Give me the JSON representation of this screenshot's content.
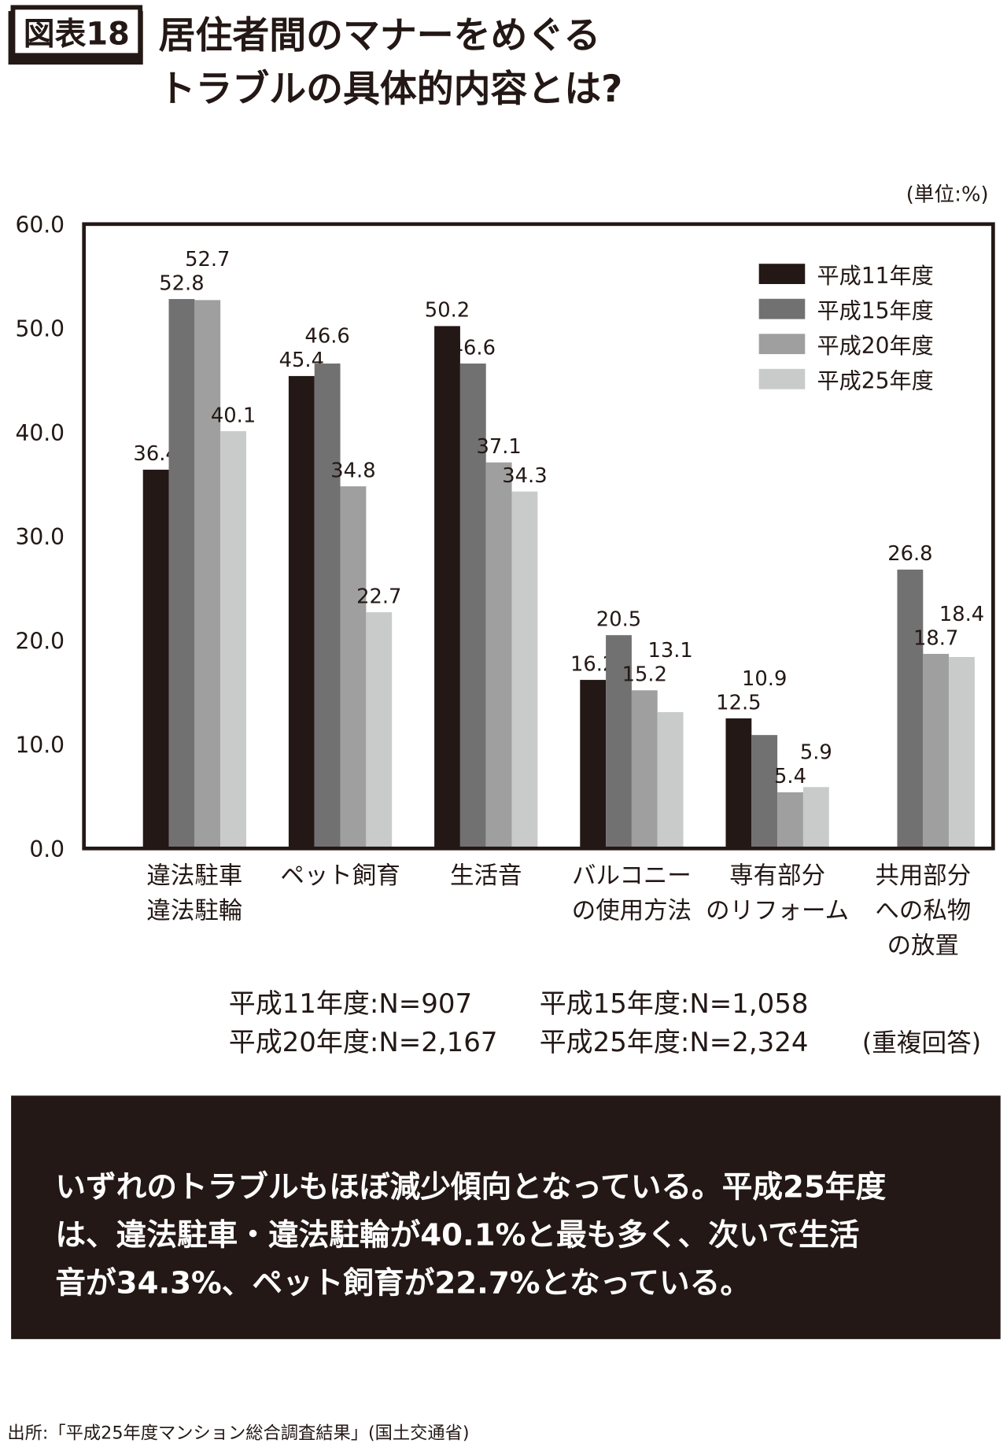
{
  "header": {
    "badge": "図表18",
    "title_line1": "居住者間のマナーをめぐる",
    "title_line2": "トラブルの具体的内容とは?"
  },
  "colors": {
    "series": [
      "#231815",
      "#727171",
      "#9f9f9f",
      "#c9caca"
    ],
    "frame": "#231815",
    "summary_bg": "#231815"
  },
  "chart_data": {
    "type": "bar",
    "title": "居住者間のマナーをめぐるトラブルの具体的内容とは?",
    "unit_label": "(単位:%)",
    "ylabel": "",
    "xlabel": "",
    "ylim": [
      0,
      60
    ],
    "yticks": [
      "0.0",
      "10.0",
      "20.0",
      "30.0",
      "40.0",
      "50.0",
      "60.0"
    ],
    "grid": false,
    "legend_position": "top-right",
    "categories": [
      [
        "違法駐車",
        "違法駐輪"
      ],
      [
        "ペット飼育"
      ],
      [
        "生活音"
      ],
      [
        "バルコニー",
        "の使用方法"
      ],
      [
        "専有部分",
        "のリフォーム"
      ],
      [
        "共用部分",
        "への私物",
        "の放置"
      ]
    ],
    "series": [
      {
        "name": "平成11年度",
        "values": [
          36.4,
          45.4,
          50.2,
          16.2,
          12.5,
          null
        ]
      },
      {
        "name": "平成15年度",
        "values": [
          52.8,
          46.6,
          46.6,
          20.5,
          10.9,
          26.8
        ]
      },
      {
        "name": "平成20年度",
        "values": [
          52.7,
          34.8,
          37.1,
          15.2,
          5.4,
          18.7
        ]
      },
      {
        "name": "平成25年度",
        "values": [
          40.1,
          22.7,
          34.3,
          13.1,
          5.9,
          18.4
        ]
      }
    ]
  },
  "notes": {
    "n1": "平成11年度:N=907",
    "n2": "平成15年度:N=1,058",
    "n3": "平成20年度:N=2,167",
    "n4": "平成25年度:N=2,324",
    "multiple": "(重複回答)"
  },
  "summary": {
    "line1": "いずれのトラブルもほぼ減少傾向となっている。平成25年度",
    "line2": "は、違法駐車・違法駐輪が40.1%と最も多く、次いで生活",
    "line3": "音が34.3%、ペット飼育が22.7%となっている。"
  },
  "source": "出所:「平成25年度マンション総合調査結果」(国土交通省)"
}
